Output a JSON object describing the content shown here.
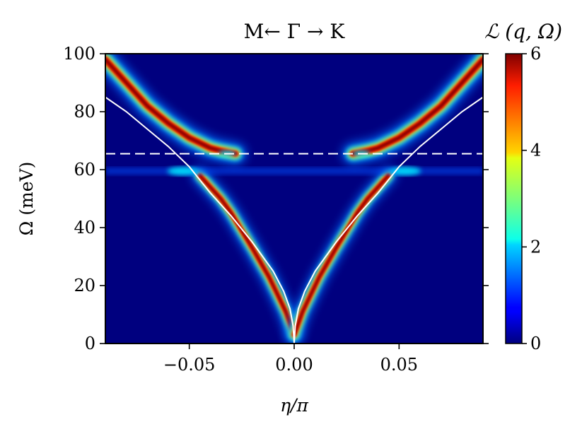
{
  "chart_data": {
    "type": "heatmap",
    "title": "M← Γ → K",
    "xlabel": "η/π",
    "ylabel": "Ω (meV)",
    "xlim": [
      -0.09,
      0.09
    ],
    "ylim": [
      0,
      100
    ],
    "xticks": [
      -0.05,
      0.0,
      0.05
    ],
    "xtick_labels": [
      "−0.05",
      "0.00",
      "0.05"
    ],
    "yticks": [
      0,
      20,
      40,
      60,
      80,
      100
    ],
    "ytick_labels": [
      "0",
      "20",
      "40",
      "60",
      "80",
      "100"
    ],
    "colorbar": {
      "label": "ℒ (q, Ω)",
      "range": [
        0,
        6
      ],
      "ticks": [
        0,
        2,
        4,
        6
      ],
      "tick_labels": [
        "0",
        "2",
        "4",
        "6"
      ],
      "colormap": "jet"
    },
    "dashed_line": {
      "y": 65.5,
      "color": "#ffffff"
    },
    "white_curve": {
      "color": "#ffffff",
      "x": [
        0.0,
        0.0005,
        0.002,
        0.005,
        0.01,
        0.02,
        0.03,
        0.04,
        0.05,
        0.06,
        0.07,
        0.08,
        0.09
      ],
      "y": [
        0,
        6,
        12,
        18,
        25,
        35,
        44,
        52,
        61,
        68,
        74,
        80,
        85
      ]
    },
    "upper_branch": {
      "x_start": 0.028,
      "y_start": 65.5,
      "x": [
        0.028,
        0.035,
        0.04,
        0.05,
        0.06,
        0.07,
        0.08,
        0.09
      ],
      "y": [
        65.5,
        66.5,
        67.5,
        71,
        76,
        82,
        90,
        98
      ]
    },
    "lower_branch": {
      "x": [
        0.0,
        0.004,
        0.008,
        0.012,
        0.016,
        0.02,
        0.025,
        0.03,
        0.035,
        0.04,
        0.045
      ],
      "y": [
        3,
        11,
        17,
        23,
        28,
        33,
        39,
        45,
        50,
        54,
        58
      ]
    },
    "flat_band": {
      "y": 59.5,
      "x_range": [
        -0.09,
        0.09
      ]
    }
  }
}
